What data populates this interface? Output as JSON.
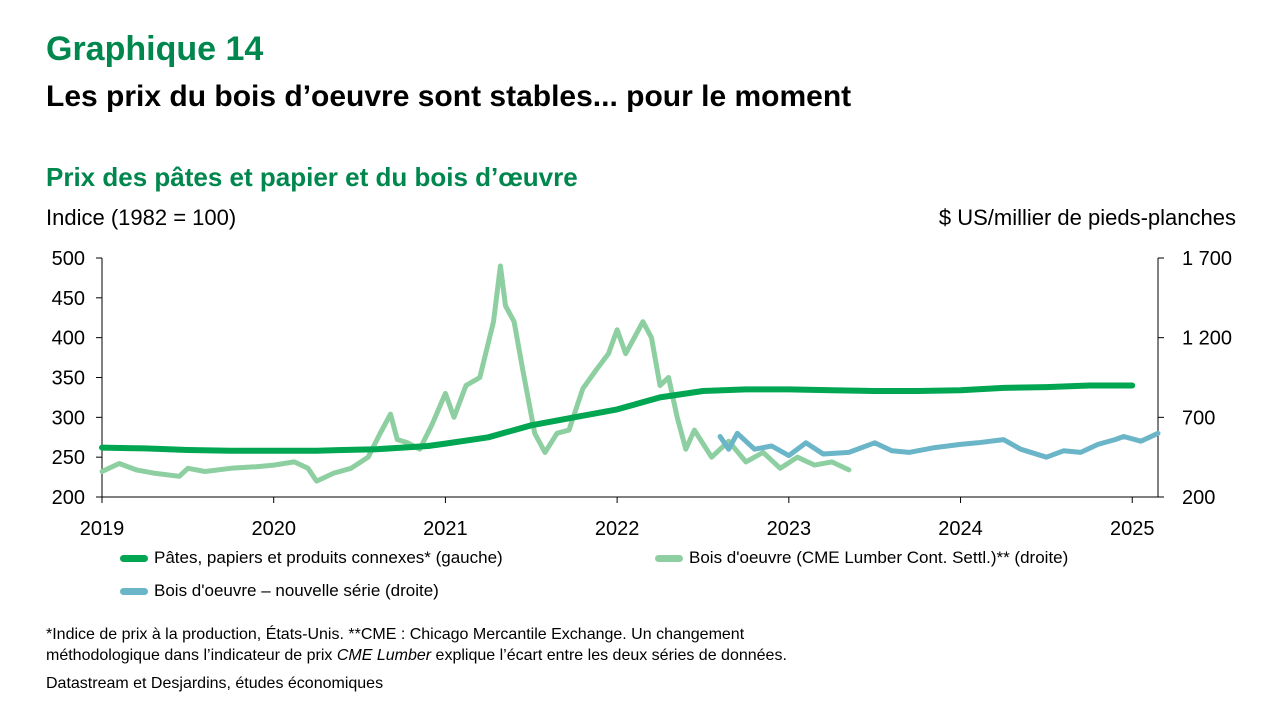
{
  "header": {
    "label": "Graphique 14",
    "title": "Les prix du bois d’oeuvre sont stables... pour le moment"
  },
  "colors": {
    "green_brand": "#00874E",
    "pulp": "#00A651",
    "lumber": "#8DCFA0",
    "lumber_new": "#6BB5C9"
  },
  "chart_data": {
    "type": "line",
    "title": "Prix des pâtes et papier et du bois d’œuvre",
    "ylabel_left": "Indice (1982 = 100)",
    "ylabel_right": "$ US/millier de pieds-planches",
    "xlim": [
      2019.0,
      2025.15
    ],
    "ylim_left": [
      200,
      500
    ],
    "ylim_right": [
      200,
      1700
    ],
    "x_ticks": [
      2019,
      2020,
      2021,
      2022,
      2023,
      2024,
      2025
    ],
    "y_ticks_left": [
      "500",
      "450",
      "400",
      "350",
      "300",
      "250",
      "200"
    ],
    "y_ticks_right": [
      "1 700",
      "1 200",
      "700",
      "200"
    ],
    "grid": false,
    "legend": [
      "Pâtes, papiers et produits connexes* (gauche)",
      "Bois d'oeuvre (CME Lumber Cont. Settl.)** (droite)",
      "Bois d'oeuvre – nouvelle série (droite)"
    ],
    "series": [
      {
        "name": "Pâtes, papiers et produits connexes* (gauche)",
        "axis": "left",
        "x": [
          2019.0,
          2019.25,
          2019.5,
          2019.75,
          2020.0,
          2020.25,
          2020.4,
          2020.6,
          2020.75,
          2020.9,
          2021.0,
          2021.25,
          2021.5,
          2021.75,
          2022.0,
          2022.25,
          2022.5,
          2022.75,
          2023.0,
          2023.25,
          2023.5,
          2023.75,
          2024.0,
          2024.25,
          2024.5,
          2024.75,
          2025.0
        ],
        "y": [
          262,
          261,
          259,
          258,
          258,
          258,
          259,
          260,
          262,
          264,
          267,
          275,
          290,
          300,
          310,
          325,
          333,
          335,
          335,
          334,
          333,
          333,
          334,
          337,
          338,
          340,
          340
        ]
      },
      {
        "name": "Bois d'oeuvre (CME Lumber Cont. Settl.)** (droite)",
        "axis": "right",
        "x": [
          2019.0,
          2019.1,
          2019.2,
          2019.3,
          2019.45,
          2019.5,
          2019.6,
          2019.75,
          2019.9,
          2020.0,
          2020.12,
          2020.2,
          2020.25,
          2020.35,
          2020.45,
          2020.55,
          2020.62,
          2020.68,
          2020.72,
          2020.78,
          2020.85,
          2020.92,
          2021.0,
          2021.05,
          2021.12,
          2021.2,
          2021.28,
          2021.32,
          2021.35,
          2021.4,
          2021.45,
          2021.52,
          2021.58,
          2021.65,
          2021.72,
          2021.8,
          2021.88,
          2021.95,
          2022.0,
          2022.05,
          2022.1,
          2022.15,
          2022.2,
          2022.25,
          2022.3,
          2022.35,
          2022.4,
          2022.45,
          2022.55,
          2022.65,
          2022.75,
          2022.85,
          2022.95,
          2023.05,
          2023.15,
          2023.25,
          2023.35
        ],
        "y": [
          360,
          410,
          370,
          350,
          330,
          380,
          360,
          380,
          390,
          400,
          420,
          380,
          300,
          350,
          380,
          450,
          600,
          720,
          560,
          540,
          500,
          650,
          850,
          700,
          900,
          950,
          1300,
          1650,
          1400,
          1300,
          1000,
          600,
          480,
          600,
          620,
          880,
          1000,
          1100,
          1250,
          1100,
          1200,
          1300,
          1200,
          900,
          950,
          700,
          500,
          620,
          450,
          550,
          420,
          480,
          380,
          450,
          400,
          420,
          370
        ]
      },
      {
        "name": "Bois d'oeuvre – nouvelle série (droite)",
        "axis": "right",
        "x": [
          2022.6,
          2022.65,
          2022.7,
          2022.8,
          2022.9,
          2023.0,
          2023.1,
          2023.2,
          2023.35,
          2023.5,
          2023.6,
          2023.7,
          2023.85,
          2024.0,
          2024.1,
          2024.25,
          2024.35,
          2024.5,
          2024.6,
          2024.7,
          2024.8,
          2024.9,
          2024.95,
          2025.05,
          2025.15
        ],
        "y": [
          580,
          500,
          600,
          500,
          520,
          460,
          540,
          470,
          480,
          540,
          490,
          480,
          510,
          530,
          540,
          560,
          500,
          450,
          490,
          480,
          530,
          560,
          580,
          550,
          600
        ]
      }
    ]
  },
  "legend_labels": {
    "pulp": "Pâtes, papiers et produits connexes* (gauche)",
    "lumber": "Bois d'oeuvre (CME Lumber Cont. Settl.)** (droite)",
    "lumber_new": "Bois d'oeuvre – nouvelle série (droite)"
  },
  "footnote": {
    "line1": "*Indice de prix à la production, États-Unis. **CME : Chicago Mercantile Exchange. Un changement",
    "line2_before": "méthodologique dans l’indicateur de prix ",
    "line2_italic": "CME Lumber",
    "line2_after": " explique l’écart entre les deux séries de données."
  },
  "source": "Datastream et Desjardins, études économiques"
}
